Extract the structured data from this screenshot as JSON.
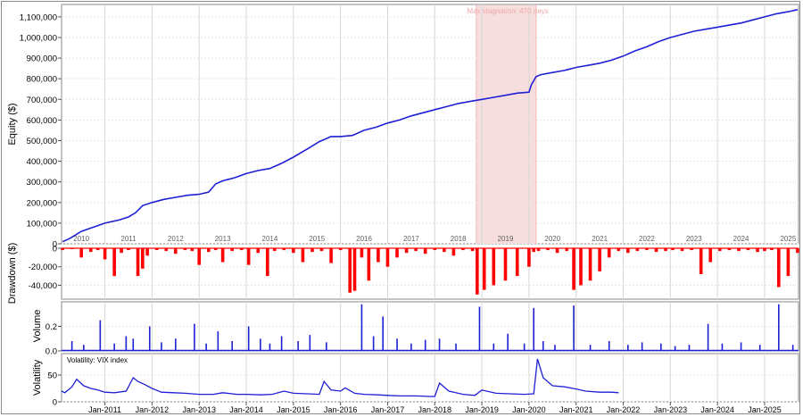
{
  "chart_data": [
    {
      "type": "line",
      "panel": "equity",
      "ylabel": "Equity ($)",
      "ylim": [
        0,
        1160000
      ],
      "yticks": [
        0,
        100000,
        200000,
        300000,
        400000,
        500000,
        600000,
        700000,
        800000,
        900000,
        1000000,
        1100000
      ],
      "ytick_labels": [
        "0",
        "100,000",
        "200,000",
        "300,000",
        "400,000",
        "500,000",
        "600,000",
        "700,000",
        "800,000",
        "900,000",
        "1,000,000",
        "1,100,000"
      ],
      "year_labels": [
        "2010",
        "2011",
        "2012",
        "2013",
        "2014",
        "2015",
        "2016",
        "2017",
        "2018",
        "2019",
        "2020",
        "2021",
        "2022",
        "2023",
        "2024",
        "2025"
      ],
      "x_range": [
        2010.08,
        2025.72
      ],
      "grid": true,
      "annotation": {
        "text": "Max stagnation: 470 days",
        "x_start": 2018.88,
        "x_end": 2020.15,
        "color": "#f7dede"
      },
      "series": [
        {
          "color": "#1f1fd6",
          "x": [
            2010.1,
            2010.25,
            2010.5,
            2010.75,
            2011.0,
            2011.3,
            2011.5,
            2011.65,
            2011.8,
            2012.0,
            2012.25,
            2012.5,
            2012.75,
            2013.0,
            2013.2,
            2013.35,
            2013.5,
            2013.75,
            2014.0,
            2014.25,
            2014.5,
            2014.75,
            2015.0,
            2015.3,
            2015.55,
            2015.8,
            2016.0,
            2016.25,
            2016.5,
            2016.75,
            2017.0,
            2017.25,
            2017.5,
            2017.75,
            2018.0,
            2018.25,
            2018.5,
            2018.75,
            2019.0,
            2019.25,
            2019.5,
            2019.75,
            2020.0,
            2020.05,
            2020.15,
            2020.25,
            2020.5,
            2020.75,
            2021.0,
            2021.25,
            2021.5,
            2021.75,
            2022.0,
            2022.25,
            2022.5,
            2022.75,
            2023.0,
            2023.25,
            2023.5,
            2023.75,
            2024.0,
            2024.25,
            2024.5,
            2024.75,
            2025.0,
            2025.25,
            2025.5,
            2025.7
          ],
          "values": [
            10000,
            25000,
            60000,
            80000,
            100000,
            115000,
            130000,
            150000,
            185000,
            200000,
            215000,
            225000,
            235000,
            240000,
            250000,
            290000,
            305000,
            320000,
            340000,
            355000,
            365000,
            390000,
            420000,
            460000,
            495000,
            520000,
            520000,
            525000,
            550000,
            565000,
            585000,
            600000,
            620000,
            635000,
            650000,
            665000,
            680000,
            690000,
            700000,
            710000,
            720000,
            730000,
            735000,
            770000,
            810000,
            820000,
            830000,
            840000,
            855000,
            865000,
            875000,
            890000,
            910000,
            935000,
            955000,
            980000,
            1000000,
            1015000,
            1030000,
            1040000,
            1050000,
            1060000,
            1070000,
            1085000,
            1100000,
            1115000,
            1125000,
            1135000
          ]
        }
      ]
    },
    {
      "type": "area",
      "panel": "drawdown",
      "ylabel": "Drawdown ($)",
      "ylim": [
        -55000,
        0
      ],
      "yticks": [
        0,
        -20000,
        -40000
      ],
      "ytick_labels": [
        "0",
        "-20,000",
        "-40,000"
      ],
      "grid": true,
      "series": [
        {
          "color": "#ff0000",
          "x": [
            2010.1,
            2010.3,
            2010.5,
            2010.7,
            2010.85,
            2011.0,
            2011.2,
            2011.35,
            2011.5,
            2011.7,
            2011.8,
            2011.9,
            2012.1,
            2012.3,
            2012.5,
            2012.7,
            2012.85,
            2013.0,
            2013.2,
            2013.35,
            2013.5,
            2013.7,
            2013.9,
            2014.05,
            2014.25,
            2014.45,
            2014.6,
            2014.8,
            2015.0,
            2015.2,
            2015.4,
            2015.6,
            2015.8,
            2016.0,
            2016.2,
            2016.3,
            2016.45,
            2016.6,
            2016.8,
            2017.0,
            2017.2,
            2017.4,
            2017.6,
            2017.8,
            2018.0,
            2018.2,
            2018.4,
            2018.6,
            2018.8,
            2018.9,
            2019.05,
            2019.25,
            2019.5,
            2019.75,
            2020.0,
            2020.1,
            2020.2,
            2020.4,
            2020.6,
            2020.8,
            2020.95,
            2021.1,
            2021.3,
            2021.5,
            2021.7,
            2021.9,
            2022.1,
            2022.3,
            2022.5,
            2022.7,
            2022.9,
            2023.05,
            2023.25,
            2023.45,
            2023.65,
            2023.85,
            2024.05,
            2024.25,
            2024.45,
            2024.65,
            2024.85,
            2025.0,
            2025.15,
            2025.3,
            2025.5,
            2025.7
          ],
          "values": [
            -2000,
            -1000,
            -10000,
            -4000,
            -2000,
            -12000,
            -30000,
            -5000,
            -2000,
            -30000,
            -22000,
            -8000,
            -2000,
            -3000,
            -6000,
            -2000,
            -3000,
            -18000,
            -4000,
            -2000,
            -15000,
            -3000,
            -2000,
            -18000,
            -5000,
            -30000,
            -3000,
            -2000,
            -5000,
            -15000,
            -4000,
            -3000,
            -16000,
            -2000,
            -48000,
            -46000,
            -10000,
            -35000,
            -15000,
            -20000,
            -10000,
            -5000,
            -3000,
            -6000,
            -2000,
            -4000,
            -8000,
            -2000,
            -3000,
            -50000,
            -45000,
            -40000,
            -35000,
            -30000,
            -20000,
            -4000,
            -3000,
            -2000,
            -5000,
            -3000,
            -45000,
            -40000,
            -35000,
            -25000,
            -10000,
            -3000,
            -5000,
            -3000,
            -2000,
            -4000,
            -3000,
            -2000,
            -3000,
            -2000,
            -28000,
            -15000,
            -3000,
            -2000,
            -3000,
            -2000,
            -4000,
            -3000,
            -2000,
            -42000,
            -30000,
            -5000
          ]
        }
      ]
    },
    {
      "type": "bar",
      "panel": "volume",
      "ylabel": "Volume",
      "ylim": [
        0,
        0.4
      ],
      "yticks": [
        0,
        0.2
      ],
      "ytick_labels": [
        "0.0",
        "0.2"
      ],
      "grid": true,
      "series": [
        {
          "color": "#1f1fd6",
          "x": [
            2010.3,
            2010.55,
            2010.9,
            2011.2,
            2011.45,
            2011.6,
            2011.95,
            2012.2,
            2012.5,
            2012.9,
            2013.15,
            2013.4,
            2013.7,
            2014.05,
            2014.3,
            2014.5,
            2014.75,
            2015.1,
            2015.35,
            2015.7,
            2016.45,
            2016.7,
            2016.9,
            2017.2,
            2017.5,
            2017.8,
            2018.1,
            2018.45,
            2018.95,
            2019.25,
            2019.55,
            2019.9,
            2020.1,
            2020.3,
            2020.55,
            2020.95,
            2021.3,
            2021.7,
            2022.1,
            2022.4,
            2022.8,
            2023.1,
            2023.4,
            2023.8,
            2024.1,
            2024.5,
            2024.9,
            2025.3,
            2025.6
          ],
          "values": [
            0.08,
            0.05,
            0.25,
            0.06,
            0.12,
            0.1,
            0.2,
            0.07,
            0.1,
            0.22,
            0.06,
            0.16,
            0.08,
            0.2,
            0.1,
            0.06,
            0.12,
            0.08,
            0.13,
            0.07,
            0.38,
            0.12,
            0.28,
            0.1,
            0.06,
            0.09,
            0.1,
            0.06,
            0.36,
            0.06,
            0.14,
            0.06,
            0.35,
            0.08,
            0.05,
            0.37,
            0.05,
            0.08,
            0.05,
            0.07,
            0.06,
            0.04,
            0.05,
            0.22,
            0.06,
            0.07,
            0.05,
            0.38,
            0.05
          ]
        }
      ]
    },
    {
      "type": "line",
      "panel": "volatility",
      "ylabel": "Volatility",
      "legend": "Volatility: VIX index",
      "ylim": [
        0,
        90
      ],
      "yticks": [
        0,
        50
      ],
      "ytick_labels": [
        "0",
        "50"
      ],
      "x_tick_labels": [
        "Jan-2011",
        "Jan-2012",
        "Jan-2013",
        "Jan-2014",
        "Jan-2015",
        "Jan-2016",
        "Jan-2017",
        "Jan-2018",
        "Jan-2019",
        "Jan-2020",
        "Jan-2021",
        "Jan-2022",
        "Jan-2023",
        "Jan-2024",
        "Jan-2025"
      ],
      "grid": true,
      "series": [
        {
          "color": "#1f1fd6",
          "x": [
            2010.0,
            2010.15,
            2010.3,
            2010.4,
            2010.55,
            2010.7,
            2010.85,
            2011.0,
            2011.2,
            2011.45,
            2011.6,
            2011.7,
            2011.85,
            2012.0,
            2012.2,
            2012.45,
            2012.7,
            2013.0,
            2013.3,
            2013.5,
            2013.8,
            2014.0,
            2014.3,
            2014.55,
            2014.8,
            2015.0,
            2015.3,
            2015.55,
            2015.65,
            2015.8,
            2016.0,
            2016.1,
            2016.3,
            2016.5,
            2016.8,
            2017.0,
            2017.3,
            2017.6,
            2017.9,
            2018.0,
            2018.1,
            2018.3,
            2018.6,
            2018.85,
            2019.0,
            2019.3,
            2019.6,
            2019.9,
            2020.1,
            2020.18,
            2020.3,
            2020.5,
            2020.75,
            2021.0,
            2021.2,
            2021.5,
            2021.75,
            2021.9
          ],
          "values": [
            20,
            17,
            28,
            42,
            30,
            25,
            22,
            18,
            17,
            20,
            45,
            38,
            32,
            25,
            18,
            17,
            16,
            14,
            14,
            17,
            14,
            14,
            13,
            14,
            20,
            16,
            15,
            14,
            38,
            22,
            20,
            26,
            16,
            14,
            13,
            12,
            11,
            11,
            10,
            10,
            35,
            20,
            14,
            12,
            22,
            16,
            15,
            14,
            15,
            80,
            45,
            30,
            28,
            24,
            20,
            18,
            18,
            17
          ]
        }
      ]
    }
  ]
}
